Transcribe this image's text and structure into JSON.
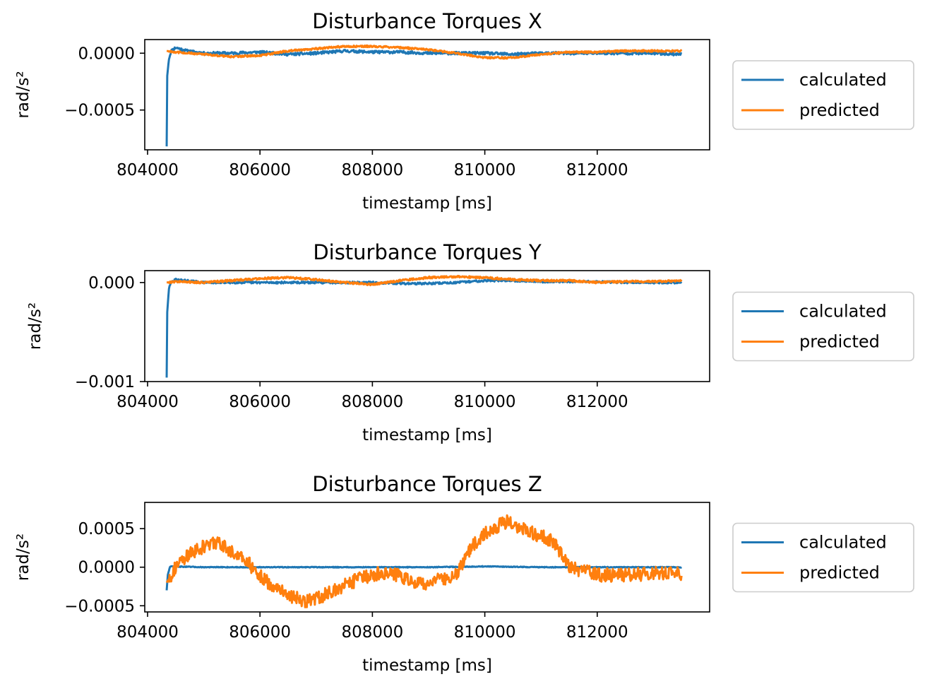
{
  "colors": {
    "calculated": "#1f77b4",
    "predicted": "#ff7f0e",
    "axes": "#000000",
    "legend_border": "#cccccc"
  },
  "chart_data": [
    {
      "type": "line",
      "title": "Disturbance Torques X",
      "xlabel": "timestamp [ms]",
      "ylabel": "rad/s²",
      "xlim": [
        803950,
        814000
      ],
      "ylim": [
        -0.00085,
        0.00012
      ],
      "xticks": [
        804000,
        806000,
        808000,
        810000,
        812000
      ],
      "xtick_labels": [
        "804000",
        "806000",
        "808000",
        "810000",
        "812000"
      ],
      "yticks": [
        0.0,
        -0.0005
      ],
      "ytick_labels": [
        "0.0000",
        "−0.0005"
      ],
      "grid": false,
      "legend_position": "right",
      "series": [
        {
          "name": "calculated",
          "points": [
            [
              804340,
              -0.00082
            ],
            [
              804350,
              -0.0002
            ],
            [
              804380,
              -5e-05
            ],
            [
              804420,
              2e-05
            ],
            [
              804500,
              5e-05
            ],
            [
              804700,
              2e-05
            ],
            [
              805000,
              0.0
            ],
            [
              805500,
              0.0
            ],
            [
              806000,
              1e-05
            ],
            [
              806500,
              -1e-05
            ],
            [
              807000,
              0.0
            ],
            [
              807500,
              2e-05
            ],
            [
              808000,
              1e-05
            ],
            [
              808500,
              1e-05
            ],
            [
              809000,
              0.0
            ],
            [
              809500,
              0.0
            ],
            [
              810000,
              0.0
            ],
            [
              810500,
              -1e-05
            ],
            [
              811000,
              0.0
            ],
            [
              811500,
              0.0
            ],
            [
              812000,
              0.0
            ],
            [
              812500,
              0.0
            ],
            [
              813000,
              0.0
            ],
            [
              813500,
              -1e-05
            ]
          ],
          "jitter": 1.2e-05
        },
        {
          "name": "predicted",
          "points": [
            [
              804340,
              2e-05
            ],
            [
              804500,
              1e-05
            ],
            [
              805000,
              -1e-05
            ],
            [
              805500,
              -3e-05
            ],
            [
              806000,
              -2e-05
            ],
            [
              806500,
              2e-05
            ],
            [
              807000,
              4e-05
            ],
            [
              807500,
              6e-05
            ],
            [
              808000,
              6e-05
            ],
            [
              808500,
              5e-05
            ],
            [
              809000,
              3e-05
            ],
            [
              809500,
              0.0
            ],
            [
              810000,
              -4e-05
            ],
            [
              810500,
              -4e-05
            ],
            [
              811000,
              -1e-05
            ],
            [
              811500,
              1e-05
            ],
            [
              812000,
              1e-05
            ],
            [
              812500,
              2e-05
            ],
            [
              813000,
              2e-05
            ],
            [
              813500,
              2e-05
            ]
          ],
          "jitter": 8e-06
        }
      ]
    },
    {
      "type": "line",
      "title": "Disturbance Torques Y",
      "xlabel": "timestamp [ms]",
      "ylabel": "rad/s²",
      "xlim": [
        803950,
        814000
      ],
      "ylim": [
        -0.001,
        0.00012
      ],
      "xticks": [
        804000,
        806000,
        808000,
        810000,
        812000
      ],
      "xtick_labels": [
        "804000",
        "806000",
        "808000",
        "810000",
        "812000"
      ],
      "yticks": [
        0.0,
        -0.001
      ],
      "ytick_labels": [
        "0.000",
        "−0.001"
      ],
      "grid": false,
      "legend_position": "right",
      "series": [
        {
          "name": "calculated",
          "points": [
            [
              804340,
              -0.00096
            ],
            [
              804350,
              -0.0003
            ],
            [
              804380,
              -6e-05
            ],
            [
              804420,
              0.0
            ],
            [
              804500,
              3e-05
            ],
            [
              805000,
              0.0
            ],
            [
              806000,
              0.0
            ],
            [
              806500,
              0.0
            ],
            [
              807000,
              0.0
            ],
            [
              807500,
              0.0
            ],
            [
              808000,
              0.0
            ],
            [
              808500,
              -1e-05
            ],
            [
              809000,
              -1e-05
            ],
            [
              809500,
              0.0
            ],
            [
              810000,
              2e-05
            ],
            [
              810500,
              2e-05
            ],
            [
              811000,
              1e-05
            ],
            [
              812000,
              1e-05
            ],
            [
              812500,
              0.0
            ],
            [
              813000,
              0.0
            ],
            [
              813500,
              0.0
            ]
          ],
          "jitter": 1e-05
        },
        {
          "name": "predicted",
          "points": [
            [
              804340,
              0.0
            ],
            [
              804500,
              1e-05
            ],
            [
              805000,
              0.0
            ],
            [
              805500,
              2e-05
            ],
            [
              806000,
              4e-05
            ],
            [
              806500,
              5e-05
            ],
            [
              807000,
              3e-05
            ],
            [
              807500,
              0.0
            ],
            [
              808000,
              -2e-05
            ],
            [
              808500,
              2e-05
            ],
            [
              809000,
              5e-05
            ],
            [
              809500,
              6e-05
            ],
            [
              810000,
              5e-05
            ],
            [
              810500,
              3e-05
            ],
            [
              811000,
              2e-05
            ],
            [
              811500,
              2e-05
            ],
            [
              812000,
              0.0
            ],
            [
              812500,
              1e-05
            ],
            [
              813000,
              1e-05
            ],
            [
              813500,
              2e-05
            ]
          ],
          "jitter": 1e-05
        }
      ]
    },
    {
      "type": "line",
      "title": "Disturbance Torques Z",
      "xlabel": "timestamp [ms]",
      "ylabel": "rad/s²",
      "xlim": [
        803950,
        814000
      ],
      "ylim": [
        -0.00058,
        0.00084
      ],
      "xticks": [
        804000,
        806000,
        808000,
        810000,
        812000
      ],
      "xtick_labels": [
        "804000",
        "806000",
        "808000",
        "810000",
        "812000"
      ],
      "yticks": [
        0.0005,
        0.0,
        -0.0005
      ],
      "ytick_labels": [
        "0.0005",
        "0.0000",
        "−0.0005"
      ],
      "grid": false,
      "legend_position": "right",
      "series": [
        {
          "name": "calculated",
          "points": [
            [
              804340,
              -0.0003
            ],
            [
              804360,
              -0.0001
            ],
            [
              804400,
              1e-05
            ],
            [
              805000,
              0.0
            ],
            [
              806000,
              0.0
            ],
            [
              807000,
              0.0
            ],
            [
              808000,
              0.0
            ],
            [
              809000,
              0.0
            ],
            [
              810000,
              1e-05
            ],
            [
              811000,
              0.0
            ],
            [
              812000,
              0.0
            ],
            [
              813000,
              0.0
            ],
            [
              813500,
              0.0
            ]
          ],
          "jitter": 5e-06
        },
        {
          "name": "predicted",
          "points": [
            [
              804340,
              -0.0002
            ],
            [
              804500,
              0.0
            ],
            [
              804800,
              0.0002
            ],
            [
              805200,
              0.00033
            ],
            [
              805500,
              0.0002
            ],
            [
              805800,
              5e-05
            ],
            [
              806100,
              -0.00018
            ],
            [
              806500,
              -0.00035
            ],
            [
              806800,
              -0.00045
            ],
            [
              807200,
              -0.00035
            ],
            [
              807600,
              -0.0002
            ],
            [
              808000,
              -0.0001
            ],
            [
              808300,
              -5e-05
            ],
            [
              808700,
              -0.0002
            ],
            [
              809000,
              -0.0002
            ],
            [
              809300,
              -0.00015
            ],
            [
              809500,
              -0.0001
            ],
            [
              809700,
              0.0002
            ],
            [
              810000,
              0.00045
            ],
            [
              810400,
              0.0006
            ],
            [
              810800,
              0.00045
            ],
            [
              811200,
              0.00035
            ],
            [
              811500,
              0.0
            ],
            [
              812000,
              -0.0001
            ],
            [
              812500,
              -0.0001
            ],
            [
              813000,
              -8e-05
            ],
            [
              813500,
              -8e-05
            ]
          ],
          "jitter": 9e-05
        }
      ]
    }
  ]
}
